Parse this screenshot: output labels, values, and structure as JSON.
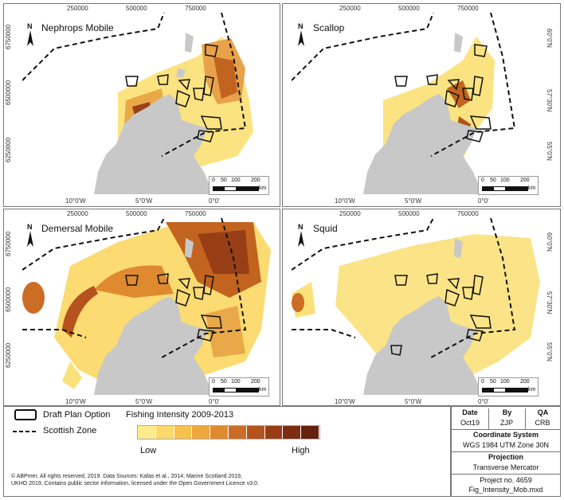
{
  "panels": [
    {
      "title": "Nephrops Mobile",
      "id": "nephrops"
    },
    {
      "title": "Scallop",
      "id": "scallop"
    },
    {
      "title": "Demersal Mobile",
      "id": "demersal"
    },
    {
      "title": "Squid",
      "id": "squid"
    }
  ],
  "axis": {
    "x_ticks": [
      "250000",
      "500000",
      "750000"
    ],
    "y_ticks": [
      "6750000",
      "6500000",
      "6250000"
    ],
    "lon_ticks": [
      "10°0'W",
      "5°0'W",
      "0°0'"
    ],
    "lat_ticks": [
      "60°0'N",
      "57°30'N",
      "55°0'N"
    ],
    "north_label": "N"
  },
  "scalebar": {
    "ticks": [
      "0",
      "50",
      "100",
      "200"
    ],
    "unit": "km"
  },
  "legend": {
    "draft_plan": "Draft Plan Option",
    "scottish_zone": "Scottish Zone",
    "fishing_title": "Fishing Intensity 2009-2013",
    "low": "Low",
    "high": "High",
    "ramp_colors": [
      "#fdeb8c",
      "#fbd96a",
      "#f7c24f",
      "#efa63d",
      "#e08a2f",
      "#cc6d25",
      "#b4531d",
      "#983e17",
      "#7d2d12",
      "#66200e"
    ]
  },
  "title_block": {
    "date_label": "Date",
    "date": "Oct19",
    "by_label": "By",
    "by": "ZJP",
    "qa_label": "QA",
    "qa": "CRB",
    "coord_label": "Coordinate System",
    "coord": "WGS 1984 UTM Zone 30N",
    "proj_label": "Projection",
    "proj": "Transverse Mercator",
    "project": "Project no. 4659",
    "file": "Fig_Intensity_Mob.mxd"
  },
  "credits": [
    "© ABPmer, All rights reserved, 2019. Data Sources: Kafas et al., 2014; Marine Scotland 2019,",
    "UKHO 2019. Contains public sector information, licensed under the Open Government Licence v3.0."
  ]
}
